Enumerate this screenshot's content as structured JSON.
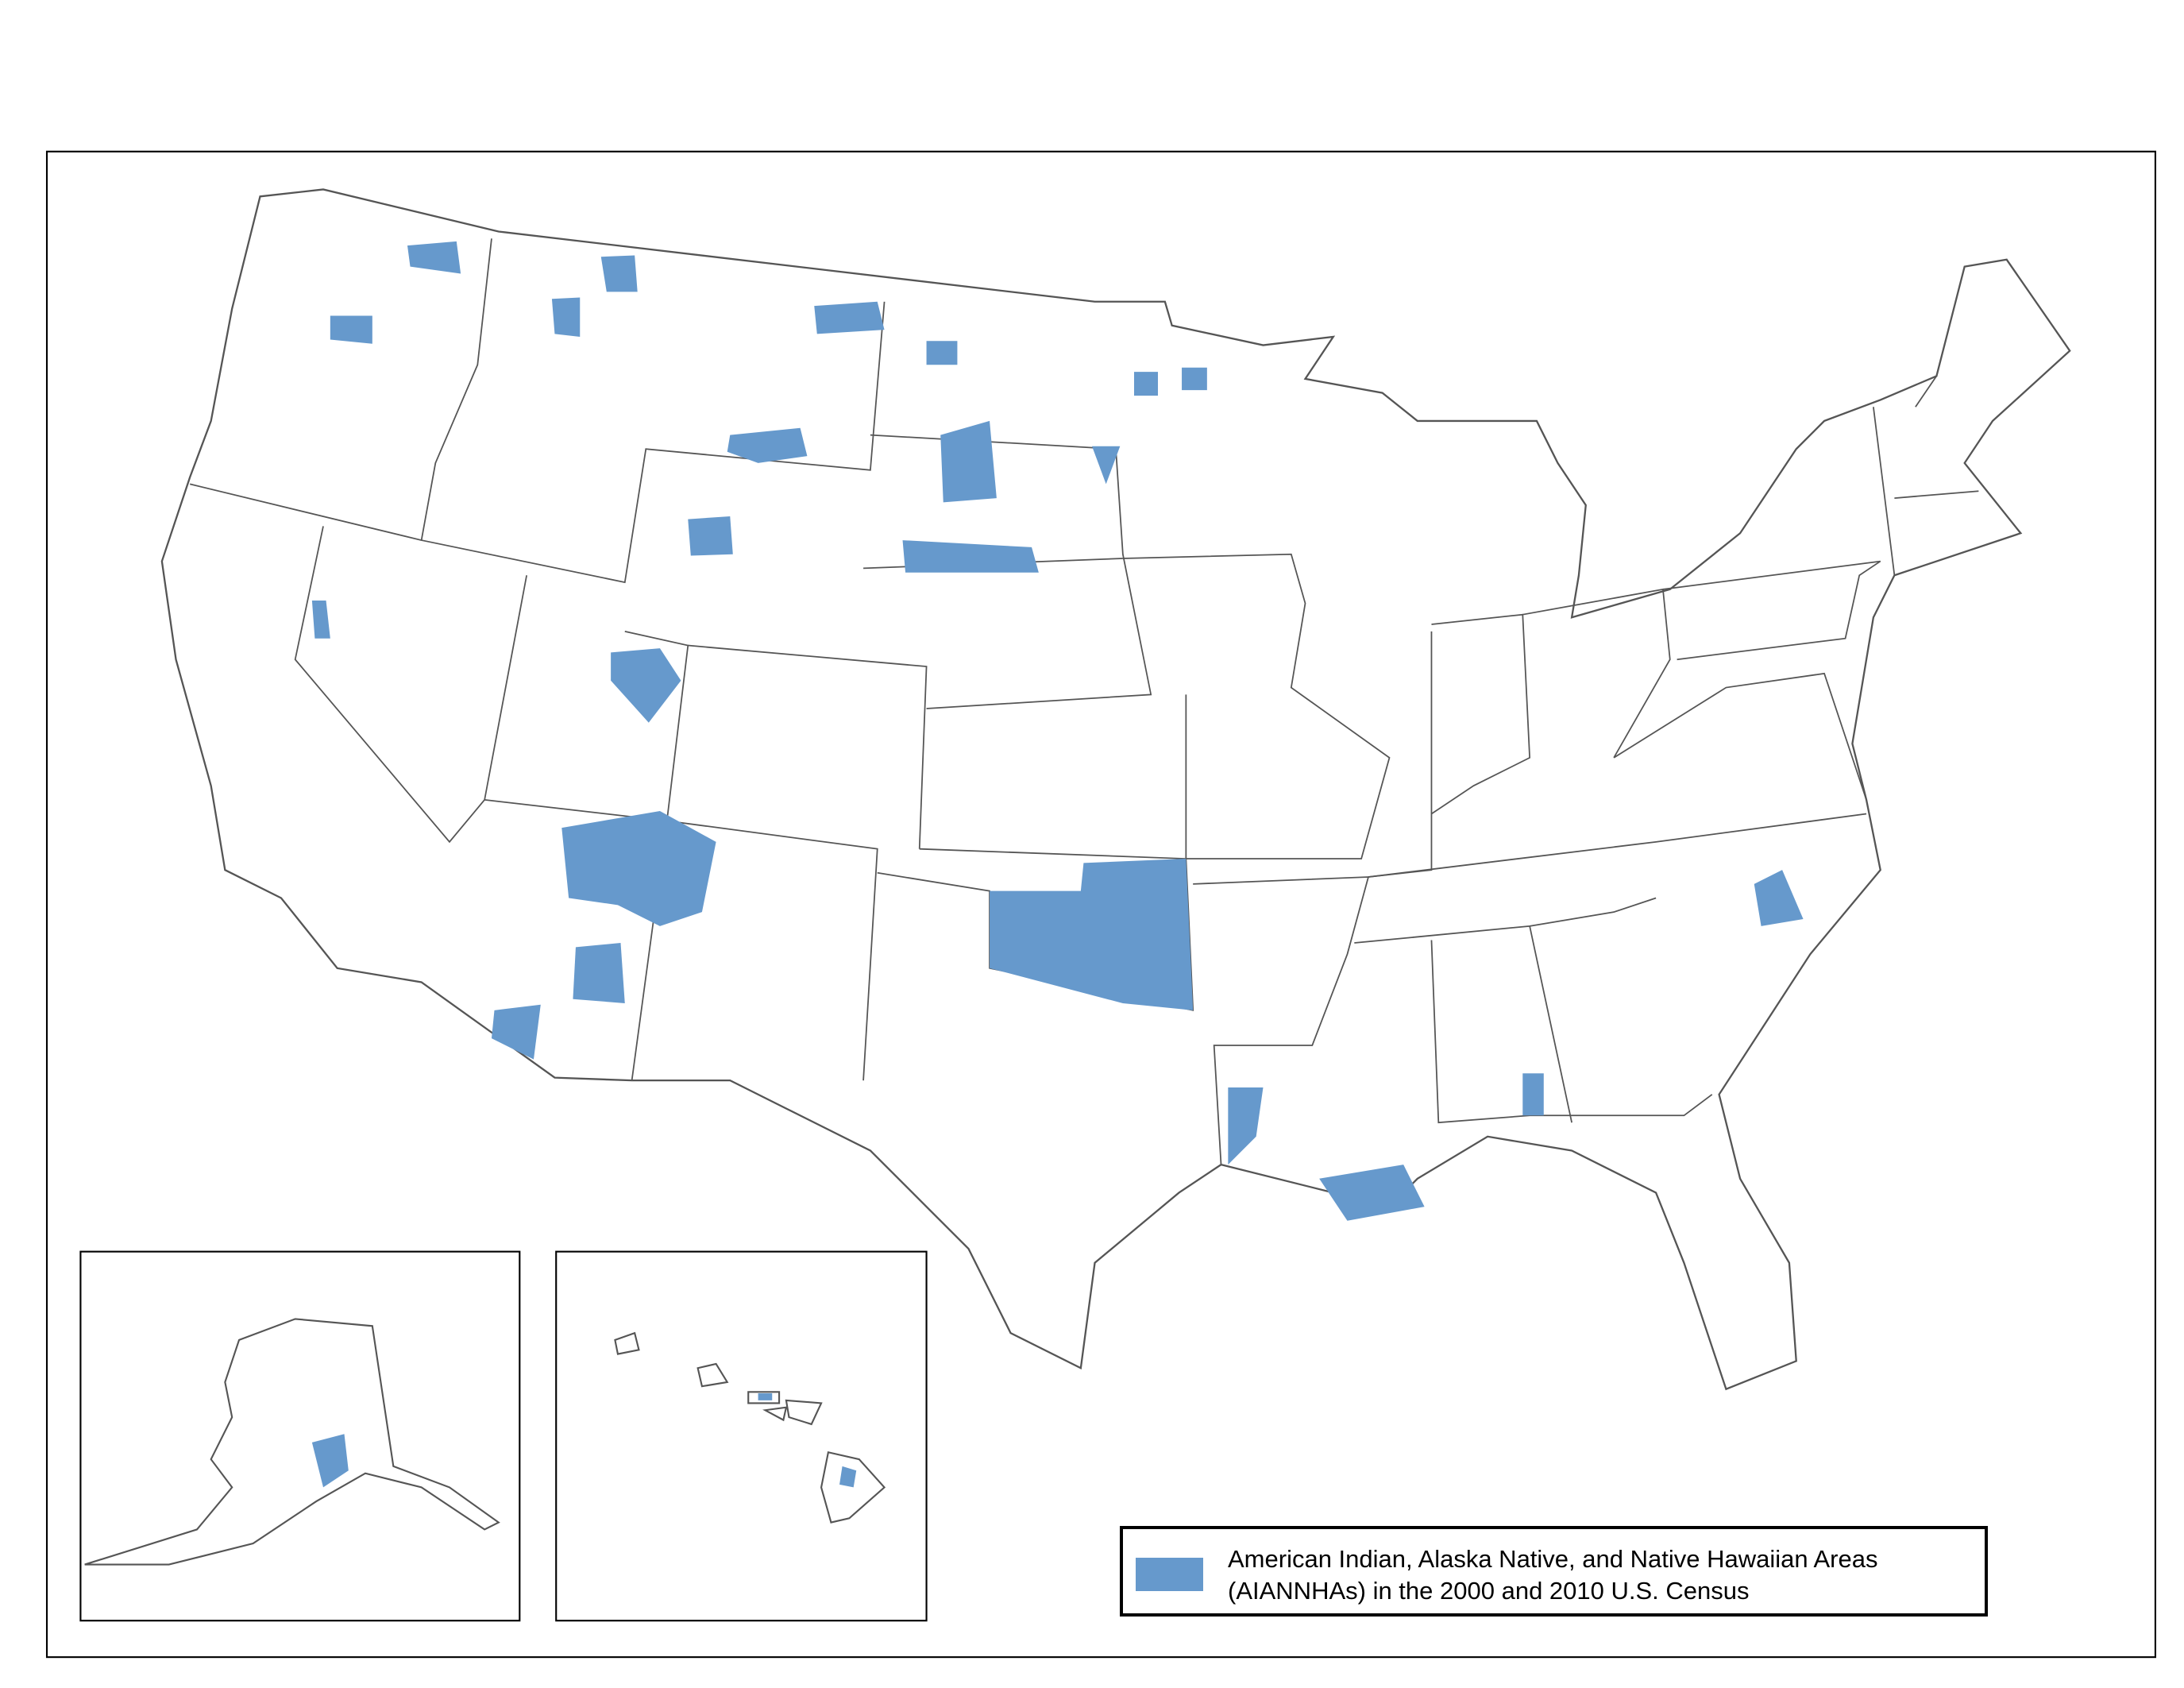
{
  "legend": {
    "line1": "American Indian, Alaska Native, and Native Hawaiian Areas",
    "line2": "(AIANNHAs) in the 2000 and 2010 U.S. Census"
  },
  "colors": {
    "aiannha_fill": "#6699cc",
    "state_border": "#555555",
    "frame": "#000000"
  },
  "insets": [
    "Alaska",
    "Hawaii"
  ]
}
